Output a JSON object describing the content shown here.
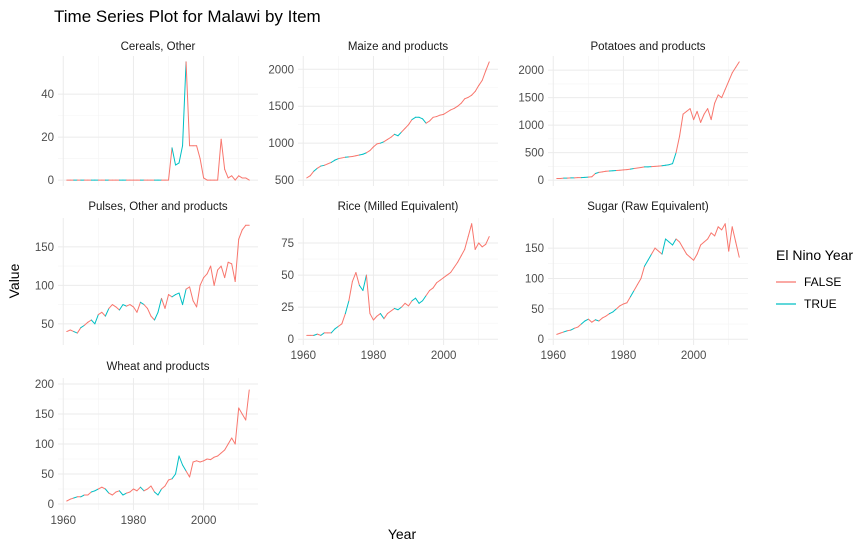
{
  "chart_data": {
    "type": "line",
    "title": "Time Series Plot for Malawi by Item",
    "xlabel": "Year",
    "ylabel": "Value",
    "legend": {
      "title": "El Nino Year",
      "placement": "right",
      "entries": [
        {
          "label": "FALSE",
          "color": "#F8766D"
        },
        {
          "label": "TRUE",
          "color": "#00BFC4"
        }
      ]
    },
    "el_nino_years": [
      1963,
      1965,
      1968,
      1969,
      1972,
      1976,
      1977,
      1982,
      1986,
      1987,
      1991,
      1992,
      1993,
      1994
    ],
    "panels": [
      {
        "name": "Cereals, Other",
        "x": [
          1961,
          1962,
          1963,
          1964,
          1965,
          1966,
          1967,
          1968,
          1969,
          1970,
          1971,
          1972,
          1973,
          1974,
          1975,
          1976,
          1977,
          1978,
          1979,
          1980,
          1981,
          1982,
          1983,
          1984,
          1985,
          1986,
          1987,
          1988,
          1989,
          1990,
          1991,
          1992,
          1993,
          1994,
          1995,
          1996,
          1997,
          1998,
          1999,
          2000,
          2001,
          2002,
          2003,
          2004,
          2005,
          2006,
          2007,
          2008,
          2009,
          2010,
          2011,
          2012,
          2013
        ],
        "y": [
          0,
          0,
          0,
          0,
          0,
          0,
          0,
          0,
          0,
          0,
          0,
          0,
          0,
          0,
          0,
          0,
          0,
          0,
          0,
          0,
          0,
          0,
          0,
          0,
          0,
          0,
          0,
          0,
          0,
          0,
          15,
          7,
          8,
          16,
          55,
          16,
          16,
          16,
          10,
          1,
          0,
          0,
          0,
          0,
          19,
          5,
          1,
          2,
          0,
          2,
          1,
          1,
          0
        ],
        "ylim": [
          0,
          55
        ],
        "yticks": [
          0,
          20,
          40
        ],
        "show_x_ticks": false
      },
      {
        "name": "Maize and products",
        "x": [
          1961,
          1962,
          1963,
          1964,
          1965,
          1966,
          1967,
          1968,
          1969,
          1970,
          1971,
          1972,
          1973,
          1974,
          1975,
          1976,
          1977,
          1978,
          1979,
          1980,
          1981,
          1982,
          1983,
          1984,
          1985,
          1986,
          1987,
          1988,
          1989,
          1990,
          1991,
          1992,
          1993,
          1994,
          1995,
          1996,
          1997,
          1998,
          1999,
          2000,
          2001,
          2002,
          2003,
          2004,
          2005,
          2006,
          2007,
          2008,
          2009,
          2010,
          2011,
          2012,
          2013
        ],
        "y": [
          530,
          560,
          620,
          660,
          690,
          700,
          720,
          740,
          770,
          790,
          800,
          810,
          815,
          820,
          830,
          840,
          850,
          870,
          900,
          950,
          990,
          1000,
          1020,
          1050,
          1080,
          1120,
          1100,
          1150,
          1200,
          1250,
          1320,
          1350,
          1350,
          1330,
          1270,
          1300,
          1350,
          1360,
          1380,
          1390,
          1420,
          1450,
          1470,
          1500,
          1540,
          1600,
          1620,
          1650,
          1700,
          1780,
          1850,
          1980,
          2100
        ],
        "ylim": [
          500,
          2100
        ],
        "yticks": [
          500,
          1000,
          1500,
          2000
        ],
        "show_x_ticks": false
      },
      {
        "name": "Potatoes and products",
        "x": [
          1961,
          1962,
          1963,
          1964,
          1965,
          1966,
          1967,
          1968,
          1969,
          1970,
          1971,
          1972,
          1973,
          1974,
          1975,
          1976,
          1977,
          1978,
          1979,
          1980,
          1981,
          1982,
          1983,
          1984,
          1985,
          1986,
          1987,
          1988,
          1989,
          1990,
          1991,
          1992,
          1993,
          1994,
          1995,
          1996,
          1997,
          1998,
          1999,
          2000,
          2001,
          2002,
          2003,
          2004,
          2005,
          2006,
          2007,
          2008,
          2009,
          2010,
          2011,
          2012,
          2013
        ],
        "y": [
          30,
          30,
          35,
          35,
          40,
          40,
          45,
          45,
          50,
          55,
          60,
          120,
          140,
          150,
          160,
          165,
          170,
          175,
          180,
          185,
          190,
          200,
          210,
          220,
          230,
          240,
          240,
          245,
          250,
          255,
          260,
          270,
          280,
          300,
          500,
          800,
          1200,
          1250,
          1300,
          1100,
          1250,
          1050,
          1200,
          1300,
          1100,
          1400,
          1550,
          1500,
          1650,
          1800,
          1950,
          2050,
          2150
        ],
        "ylim": [
          0,
          2150
        ],
        "yticks": [
          0,
          500,
          1000,
          1500,
          2000
        ],
        "show_x_ticks": false
      },
      {
        "name": "Pulses, Other and products",
        "x": [
          1961,
          1962,
          1963,
          1964,
          1965,
          1966,
          1967,
          1968,
          1969,
          1970,
          1971,
          1972,
          1973,
          1974,
          1975,
          1976,
          1977,
          1978,
          1979,
          1980,
          1981,
          1982,
          1983,
          1984,
          1985,
          1986,
          1987,
          1988,
          1989,
          1990,
          1991,
          1992,
          1993,
          1994,
          1995,
          1996,
          1997,
          1998,
          1999,
          2000,
          2001,
          2002,
          2003,
          2004,
          2005,
          2006,
          2007,
          2008,
          2009,
          2010,
          2011,
          2012,
          2013
        ],
        "y": [
          40,
          42,
          40,
          38,
          45,
          48,
          52,
          55,
          50,
          62,
          65,
          60,
          70,
          75,
          72,
          68,
          75,
          73,
          75,
          72,
          65,
          78,
          75,
          70,
          60,
          55,
          65,
          83,
          70,
          88,
          85,
          88,
          90,
          75,
          95,
          98,
          80,
          72,
          100,
          110,
          115,
          125,
          100,
          120,
          125,
          110,
          130,
          128,
          105,
          160,
          172,
          178,
          178
        ],
        "ylim": [
          30,
          180
        ],
        "yticks": [
          50,
          100,
          150
        ],
        "show_x_ticks": false
      },
      {
        "name": "Rice (Milled Equivalent)",
        "x": [
          1961,
          1962,
          1963,
          1964,
          1965,
          1966,
          1967,
          1968,
          1969,
          1970,
          1971,
          1972,
          1973,
          1974,
          1975,
          1976,
          1977,
          1978,
          1979,
          1980,
          1981,
          1982,
          1983,
          1984,
          1985,
          1986,
          1987,
          1988,
          1989,
          1990,
          1991,
          1992,
          1993,
          1994,
          1995,
          1996,
          1997,
          1998,
          1999,
          2000,
          2001,
          2002,
          2003,
          2004,
          2005,
          2006,
          2007,
          2008,
          2009,
          2010,
          2011,
          2012,
          2013
        ],
        "y": [
          3,
          3,
          3,
          4,
          3,
          5,
          5,
          5,
          8,
          10,
          12,
          20,
          30,
          45,
          52,
          42,
          38,
          50,
          20,
          15,
          18,
          20,
          16,
          20,
          22,
          24,
          23,
          25,
          28,
          26,
          30,
          32,
          28,
          30,
          34,
          38,
          40,
          44,
          46,
          48,
          50,
          52,
          56,
          60,
          65,
          70,
          80,
          90,
          70,
          75,
          72,
          74,
          80
        ],
        "ylim": [
          0,
          90
        ],
        "yticks": [
          0,
          25,
          50,
          75
        ],
        "xticks": [
          1960,
          1980,
          2000
        ],
        "show_x_ticks": true
      },
      {
        "name": "Sugar (Raw Equivalent)",
        "x": [
          1961,
          1962,
          1963,
          1964,
          1965,
          1966,
          1967,
          1968,
          1969,
          1970,
          1971,
          1972,
          1973,
          1974,
          1975,
          1976,
          1977,
          1978,
          1979,
          1980,
          1981,
          1982,
          1983,
          1984,
          1985,
          1986,
          1987,
          1988,
          1989,
          1990,
          1991,
          1992,
          1993,
          1994,
          1995,
          1996,
          1997,
          1998,
          1999,
          2000,
          2001,
          2002,
          2003,
          2004,
          2005,
          2006,
          2007,
          2008,
          2009,
          2010,
          2011,
          2012,
          2013
        ],
        "y": [
          8,
          10,
          12,
          14,
          15,
          18,
          20,
          25,
          30,
          33,
          28,
          32,
          30,
          35,
          38,
          42,
          45,
          50,
          55,
          58,
          60,
          70,
          80,
          90,
          100,
          120,
          130,
          140,
          150,
          145,
          140,
          165,
          160,
          155,
          165,
          160,
          150,
          140,
          135,
          130,
          140,
          155,
          160,
          165,
          175,
          170,
          185,
          180,
          190,
          145,
          185,
          160,
          135
        ],
        "ylim": [
          0,
          190
        ],
        "yticks": [
          0,
          50,
          100,
          150
        ],
        "xticks": [
          1960,
          1980,
          2000
        ],
        "show_x_ticks": true
      },
      {
        "name": "Wheat and products",
        "x": [
          1961,
          1962,
          1963,
          1964,
          1965,
          1966,
          1967,
          1968,
          1969,
          1970,
          1971,
          1972,
          1973,
          1974,
          1975,
          1976,
          1977,
          1978,
          1979,
          1980,
          1981,
          1982,
          1983,
          1984,
          1985,
          1986,
          1987,
          1988,
          1989,
          1990,
          1991,
          1992,
          1993,
          1994,
          1995,
          1996,
          1997,
          1998,
          1999,
          2000,
          2001,
          2002,
          2003,
          2004,
          2005,
          2006,
          2007,
          2008,
          2009,
          2010,
          2011,
          2012,
          2013
        ],
        "y": [
          5,
          8,
          10,
          12,
          12,
          15,
          15,
          20,
          22,
          25,
          28,
          25,
          18,
          15,
          20,
          22,
          15,
          18,
          20,
          25,
          22,
          28,
          22,
          25,
          30,
          20,
          15,
          25,
          30,
          40,
          42,
          50,
          80,
          65,
          55,
          45,
          70,
          72,
          70,
          72,
          75,
          74,
          78,
          80,
          85,
          90,
          100,
          110,
          100,
          160,
          150,
          140,
          190
        ],
        "ylim": [
          0,
          200
        ],
        "yticks": [
          0,
          50,
          100,
          150,
          200
        ],
        "xticks": [
          1960,
          1980,
          2000
        ],
        "show_x_ticks": true
      }
    ]
  }
}
